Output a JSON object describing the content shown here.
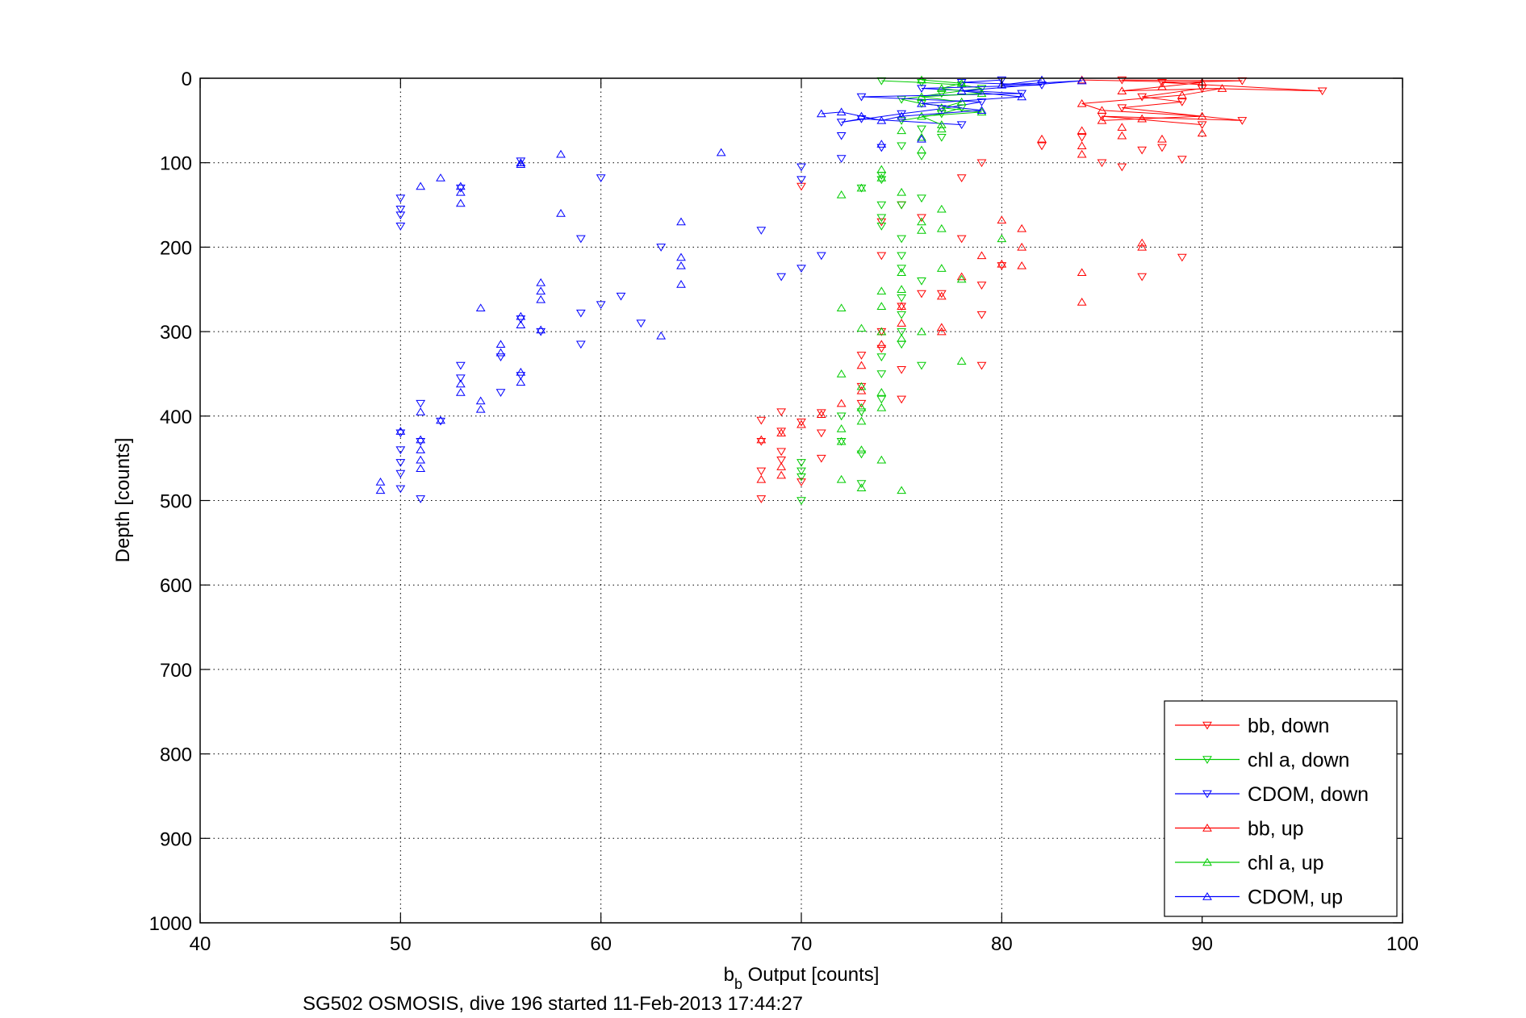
{
  "chart_data": {
    "type": "scatter",
    "xlabel_main": "b",
    "xlabel_sub": "b",
    "xlabel_rest": " Output [counts]",
    "ylabel": "Depth [counts]",
    "caption": "SG502 OSMOSIS, dive 196 started 11-Feb-2013 17:44:27",
    "xlim": [
      40,
      100
    ],
    "ylim": [
      0,
      1000
    ],
    "y_reversed": true,
    "grid": true,
    "legend_position": "bottom-right",
    "x_ticks": [
      "40",
      "50",
      "60",
      "70",
      "80",
      "90",
      "100"
    ],
    "y_ticks": [
      "0",
      "100",
      "200",
      "300",
      "400",
      "500",
      "600",
      "700",
      "800",
      "900",
      "1000"
    ],
    "series": [
      {
        "name": "bb, down",
        "color": "#ff0000",
        "marker": "triangle-down",
        "connected": true,
        "points": [
          [
            86,
            2
          ],
          [
            92,
            3
          ],
          [
            88,
            5
          ],
          [
            96,
            15
          ],
          [
            90,
            12
          ],
          [
            87,
            22
          ],
          [
            89,
            28
          ],
          [
            86,
            35
          ],
          [
            92,
            50
          ],
          [
            85,
            45
          ],
          [
            90,
            55
          ],
          [
            84,
            70
          ],
          [
            82,
            80
          ],
          [
            87,
            85
          ],
          [
            88,
            82
          ],
          [
            89,
            96
          ],
          [
            85,
            100
          ],
          [
            86,
            105
          ],
          [
            79,
            100
          ],
          [
            78,
            118
          ],
          [
            75,
            150
          ],
          [
            70,
            128
          ],
          [
            76,
            165
          ],
          [
            74,
            170
          ],
          [
            78,
            190
          ],
          [
            74,
            210
          ],
          [
            80,
            222
          ],
          [
            76,
            255
          ],
          [
            79,
            245
          ],
          [
            77,
            255
          ],
          [
            75,
            270
          ],
          [
            79,
            280
          ],
          [
            74,
            300
          ],
          [
            74,
            320
          ],
          [
            73,
            328
          ],
          [
            75,
            345
          ],
          [
            79,
            340
          ],
          [
            73,
            365
          ],
          [
            75,
            380
          ],
          [
            73,
            385
          ],
          [
            69,
            395
          ],
          [
            71,
            396
          ],
          [
            68,
            405
          ],
          [
            70,
            407
          ],
          [
            69,
            418
          ],
          [
            71,
            420
          ],
          [
            68,
            430
          ],
          [
            69,
            442
          ],
          [
            71,
            450
          ],
          [
            69,
            452
          ],
          [
            68,
            465
          ],
          [
            70,
            478
          ],
          [
            68,
            498
          ],
          [
            89,
            212
          ],
          [
            87,
            235
          ]
        ]
      },
      {
        "name": "chl a, down",
        "color": "#00cc00",
        "marker": "triangle-down",
        "connected": true,
        "points": [
          [
            74,
            3
          ],
          [
            76,
            5
          ],
          [
            78,
            8
          ],
          [
            79,
            12
          ],
          [
            77,
            18
          ],
          [
            75,
            25
          ],
          [
            76,
            30
          ],
          [
            78,
            35
          ],
          [
            77,
            42
          ],
          [
            75,
            50
          ],
          [
            76,
            60
          ],
          [
            77,
            70
          ],
          [
            75,
            80
          ],
          [
            76,
            92
          ],
          [
            74,
            115
          ],
          [
            74,
            150
          ],
          [
            74,
            165
          ],
          [
            74,
            175
          ],
          [
            75,
            150
          ],
          [
            76,
            142
          ],
          [
            73,
            130
          ],
          [
            74,
            120
          ],
          [
            75,
            190
          ],
          [
            75,
            210
          ],
          [
            76,
            240
          ],
          [
            75,
            225
          ],
          [
            75,
            260
          ],
          [
            75,
            280
          ],
          [
            75,
            300
          ],
          [
            75,
            315
          ],
          [
            74,
            330
          ],
          [
            76,
            340
          ],
          [
            74,
            350
          ],
          [
            74,
            380
          ],
          [
            73,
            395
          ],
          [
            72,
            400
          ],
          [
            72,
            430
          ],
          [
            70,
            455
          ],
          [
            70,
            465
          ],
          [
            70,
            472
          ],
          [
            73,
            480
          ],
          [
            70,
            500
          ],
          [
            73,
            445
          ]
        ]
      },
      {
        "name": "CDOM, down",
        "color": "#0000ff",
        "marker": "triangle-down",
        "connected": true,
        "points": [
          [
            80,
            2
          ],
          [
            78,
            5
          ],
          [
            82,
            8
          ],
          [
            76,
            12
          ],
          [
            81,
            18
          ],
          [
            73,
            22
          ],
          [
            79,
            28
          ],
          [
            77,
            36
          ],
          [
            75,
            42
          ],
          [
            72,
            52
          ],
          [
            73,
            48
          ],
          [
            78,
            55
          ],
          [
            72,
            68
          ],
          [
            74,
            82
          ],
          [
            70,
            105
          ],
          [
            71,
            210
          ],
          [
            72,
            95
          ],
          [
            70,
            120
          ],
          [
            68,
            180
          ],
          [
            70,
            225
          ],
          [
            69,
            235
          ],
          [
            60,
            118
          ],
          [
            59,
            190
          ],
          [
            59,
            278
          ],
          [
            59,
            315
          ],
          [
            61,
            258
          ],
          [
            60,
            268
          ],
          [
            62,
            290
          ],
          [
            57,
            300
          ],
          [
            55,
            372
          ],
          [
            52,
            406
          ],
          [
            51,
            385
          ],
          [
            50,
            420
          ],
          [
            50,
            440
          ],
          [
            50,
            455
          ],
          [
            51,
            430
          ],
          [
            50,
            468
          ],
          [
            51,
            498
          ],
          [
            50,
            486
          ],
          [
            50,
            142
          ],
          [
            50,
            155
          ],
          [
            50,
            162
          ],
          [
            50,
            175
          ],
          [
            56,
            98
          ],
          [
            53,
            130
          ],
          [
            63,
            200
          ],
          [
            56,
            285
          ],
          [
            55,
            330
          ],
          [
            56,
            352
          ],
          [
            53,
            340
          ],
          [
            53,
            355
          ]
        ]
      },
      {
        "name": "bb, up",
        "color": "#ff0000",
        "marker": "triangle-up",
        "connected": true,
        "points": [
          [
            84,
            2
          ],
          [
            90,
            5
          ],
          [
            88,
            10
          ],
          [
            86,
            15
          ],
          [
            91,
            12
          ],
          [
            89,
            20
          ],
          [
            84,
            30
          ],
          [
            85,
            38
          ],
          [
            90,
            45
          ],
          [
            87,
            48
          ],
          [
            85,
            50
          ],
          [
            86,
            58
          ],
          [
            84,
            62
          ],
          [
            86,
            68
          ],
          [
            88,
            72
          ],
          [
            90,
            65
          ],
          [
            84,
            80
          ],
          [
            82,
            72
          ],
          [
            84,
            90
          ],
          [
            87,
            195
          ],
          [
            87,
            200
          ],
          [
            80,
            168
          ],
          [
            81,
            178
          ],
          [
            81,
            200
          ],
          [
            81,
            222
          ],
          [
            80,
            220
          ],
          [
            84,
            230
          ],
          [
            84,
            265
          ],
          [
            79,
            210
          ],
          [
            75,
            270
          ],
          [
            75,
            290
          ],
          [
            74,
            300
          ],
          [
            74,
            315
          ],
          [
            73,
            340
          ],
          [
            73,
            370
          ],
          [
            72,
            385
          ],
          [
            71,
            398
          ],
          [
            70,
            410
          ],
          [
            69,
            420
          ],
          [
            68,
            428
          ],
          [
            69,
            460
          ],
          [
            68,
            475
          ],
          [
            69,
            470
          ],
          [
            77,
            295
          ],
          [
            77,
            300
          ],
          [
            78,
            235
          ],
          [
            77,
            258
          ]
        ]
      },
      {
        "name": "chl a, up",
        "color": "#00cc00",
        "marker": "triangle-up",
        "connected": true,
        "points": [
          [
            76,
            2
          ],
          [
            78,
            6
          ],
          [
            77,
            12
          ],
          [
            79,
            18
          ],
          [
            76,
            22
          ],
          [
            78,
            28
          ],
          [
            77,
            35
          ],
          [
            79,
            40
          ],
          [
            76,
            45
          ],
          [
            77,
            55
          ],
          [
            75,
            62
          ],
          [
            76,
            70
          ],
          [
            77,
            60
          ],
          [
            76,
            85
          ],
          [
            74,
            108
          ],
          [
            74,
            118
          ],
          [
            73,
            130
          ],
          [
            72,
            138
          ],
          [
            75,
            135
          ],
          [
            77,
            155
          ],
          [
            76,
            170
          ],
          [
            76,
            180
          ],
          [
            80,
            190
          ],
          [
            77,
            178
          ],
          [
            77,
            225
          ],
          [
            75,
            230
          ],
          [
            75,
            250
          ],
          [
            74,
            252
          ],
          [
            74,
            270
          ],
          [
            72,
            272
          ],
          [
            73,
            296
          ],
          [
            74,
            300
          ],
          [
            75,
            308
          ],
          [
            72,
            350
          ],
          [
            73,
            365
          ],
          [
            74,
            372
          ],
          [
            74,
            390
          ],
          [
            73,
            390
          ],
          [
            72,
            415
          ],
          [
            73,
            406
          ],
          [
            72,
            430
          ],
          [
            73,
            440
          ],
          [
            72,
            475
          ],
          [
            73,
            485
          ],
          [
            75,
            488
          ],
          [
            74,
            452
          ],
          [
            76,
            300
          ],
          [
            78,
            335
          ],
          [
            78,
            238
          ]
        ]
      },
      {
        "name": "CDOM, up",
        "color": "#0000ff",
        "marker": "triangle-up",
        "connected": true,
        "points": [
          [
            82,
            2
          ],
          [
            80,
            8
          ],
          [
            84,
            3
          ],
          [
            78,
            15
          ],
          [
            81,
            22
          ],
          [
            76,
            30
          ],
          [
            79,
            38
          ],
          [
            75,
            45
          ],
          [
            74,
            50
          ],
          [
            73,
            45
          ],
          [
            72,
            40
          ],
          [
            71,
            42
          ],
          [
            74,
            78
          ],
          [
            76,
            72
          ],
          [
            66,
            88
          ],
          [
            58,
            90
          ],
          [
            56,
            100
          ],
          [
            56,
            102
          ],
          [
            52,
            118
          ],
          [
            51,
            128
          ],
          [
            53,
            128
          ],
          [
            53,
            135
          ],
          [
            53,
            148
          ],
          [
            58,
            160
          ],
          [
            64,
            170
          ],
          [
            64,
            212
          ],
          [
            64,
            222
          ],
          [
            64,
            244
          ],
          [
            63,
            305
          ],
          [
            57,
            242
          ],
          [
            57,
            252
          ],
          [
            57,
            262
          ],
          [
            56,
            282
          ],
          [
            56,
            292
          ],
          [
            57,
            298
          ],
          [
            54,
            272
          ],
          [
            55,
            315
          ],
          [
            55,
            325
          ],
          [
            56,
            348
          ],
          [
            56,
            360
          ],
          [
            53,
            362
          ],
          [
            53,
            372
          ],
          [
            54,
            382
          ],
          [
            54,
            392
          ],
          [
            52,
            405
          ],
          [
            51,
            395
          ],
          [
            51,
            428
          ],
          [
            51,
            440
          ],
          [
            51,
            452
          ],
          [
            51,
            462
          ],
          [
            50,
            418
          ],
          [
            49,
            478
          ],
          [
            49,
            488
          ]
        ]
      }
    ]
  }
}
